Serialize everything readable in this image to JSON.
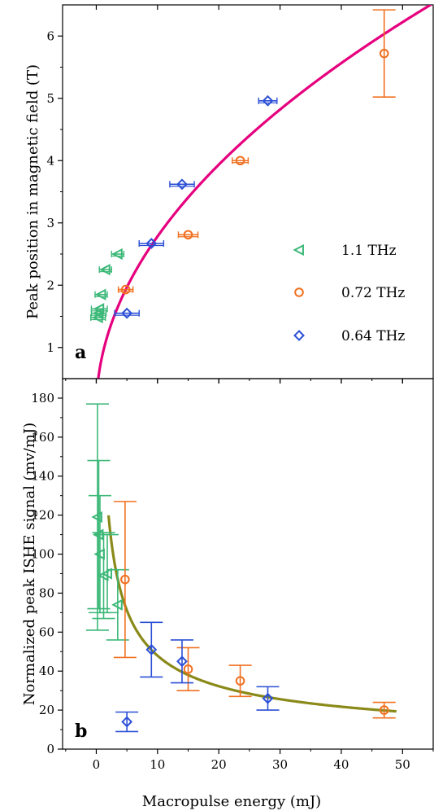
{
  "colors": {
    "green": "#3cb878",
    "orange": "#f07020",
    "blue": "#2b4fd6",
    "fit_a": "#e6007e",
    "fit_b": "#8a8a1a"
  },
  "xlabel": "Macropulse energy (mJ)",
  "xticks": [
    "0",
    "10",
    "20",
    "30",
    "40",
    "50"
  ],
  "chart_data": [
    {
      "type": "scatter",
      "panel": "a",
      "ylabel": "Peak position in magnetic field (T)",
      "xlim": [
        -5.5,
        55
      ],
      "ylim": [
        0.5,
        6.5
      ],
      "xticks": [
        0,
        10,
        20,
        30,
        40,
        50
      ],
      "yticks": [
        1,
        2,
        3,
        4,
        5,
        6
      ],
      "ytick_labels": [
        "1",
        "2",
        "3",
        "4",
        "5",
        "6"
      ],
      "legend_position": "right",
      "series": [
        {
          "name": "1.1 THz",
          "marker": "triangle-left",
          "color": "green",
          "points": [
            {
              "x": 0.3,
              "y": 1.48,
              "xerr": 1.2
            },
            {
              "x": 0.4,
              "y": 1.55,
              "xerr": 1.2
            },
            {
              "x": 0.5,
              "y": 1.62,
              "xerr": 1.3
            },
            {
              "x": 0.8,
              "y": 1.85,
              "xerr": 1.0
            },
            {
              "x": 1.5,
              "y": 2.25,
              "xerr": 1.0
            },
            {
              "x": 3.5,
              "y": 2.5,
              "xerr": 1.0
            }
          ]
        },
        {
          "name": "0.72 THz",
          "marker": "circle",
          "color": "orange",
          "points": [
            {
              "x": 4.8,
              "y": 1.93,
              "xerr": 1.2
            },
            {
              "x": 15,
              "y": 2.81,
              "xerr": 1.6
            },
            {
              "x": 23.5,
              "y": 4.0,
              "xerr": 1.3
            },
            {
              "x": 47,
              "y": 5.72,
              "xerr": 0,
              "yerr": 0.7
            }
          ]
        },
        {
          "name": "0.64 THz",
          "marker": "diamond",
          "color": "blue",
          "points": [
            {
              "x": 5,
              "y": 1.55,
              "xerr": 2.0
            },
            {
              "x": 9,
              "y": 2.67,
              "xerr": 2.0
            },
            {
              "x": 14,
              "y": 3.62,
              "xerr": 2.0
            },
            {
              "x": 28,
              "y": 4.96,
              "xerr": 1.5
            }
          ]
        }
      ],
      "fit": {
        "name": "",
        "color": "fit_a",
        "form": "sqrt",
        "coef": 0.88,
        "x_start": 0,
        "x_end": 55
      }
    },
    {
      "type": "scatter",
      "panel": "b",
      "ylabel": "Normalized peak ISHE signal (mv/mJ)",
      "xlim": [
        -5.5,
        55
      ],
      "ylim": [
        0,
        190
      ],
      "xticks": [
        0,
        10,
        20,
        30,
        40,
        50
      ],
      "yticks": [
        0,
        20,
        40,
        60,
        80,
        100,
        120,
        140,
        160,
        180
      ],
      "ytick_labels": [
        "0",
        "20",
        "40",
        "60",
        "80",
        "100",
        "120",
        "140",
        "160",
        "180"
      ],
      "series": [
        {
          "name": "1.1 THz",
          "marker": "triangle-left",
          "color": "green",
          "points": [
            {
              "x": 0.2,
              "y": 119,
              "yerr": 58
            },
            {
              "x": 0.4,
              "y": 110,
              "yerr": 38
            },
            {
              "x": 0.6,
              "y": 100,
              "yerr": 30
            },
            {
              "x": 1.2,
              "y": 89,
              "yerr": 22
            },
            {
              "x": 1.8,
              "y": 90,
              "yerr": 20
            },
            {
              "x": 3.5,
              "y": 74,
              "yerr": 18
            }
          ]
        },
        {
          "name": "0.72 THz",
          "marker": "circle",
          "color": "orange",
          "points": [
            {
              "x": 4.7,
              "y": 87,
              "yerr": 40
            },
            {
              "x": 15,
              "y": 41,
              "yerr": 11
            },
            {
              "x": 23.5,
              "y": 35,
              "yerr": 8
            },
            {
              "x": 47,
              "y": 20,
              "yerr": 4
            }
          ]
        },
        {
          "name": "0.64 THz",
          "marker": "diamond",
          "color": "blue",
          "points": [
            {
              "x": 5,
              "y": 14,
              "yerr": 5
            },
            {
              "x": 9,
              "y": 51,
              "yerr": 14
            },
            {
              "x": 14,
              "y": 45,
              "yerr": 11
            },
            {
              "x": 28,
              "y": 26,
              "yerr": 6
            }
          ]
        }
      ],
      "fit": {
        "name": "",
        "color": "fit_b",
        "form": "power",
        "coef": 178,
        "exp": -0.57,
        "x_start": 2,
        "x_end": 49
      }
    }
  ]
}
